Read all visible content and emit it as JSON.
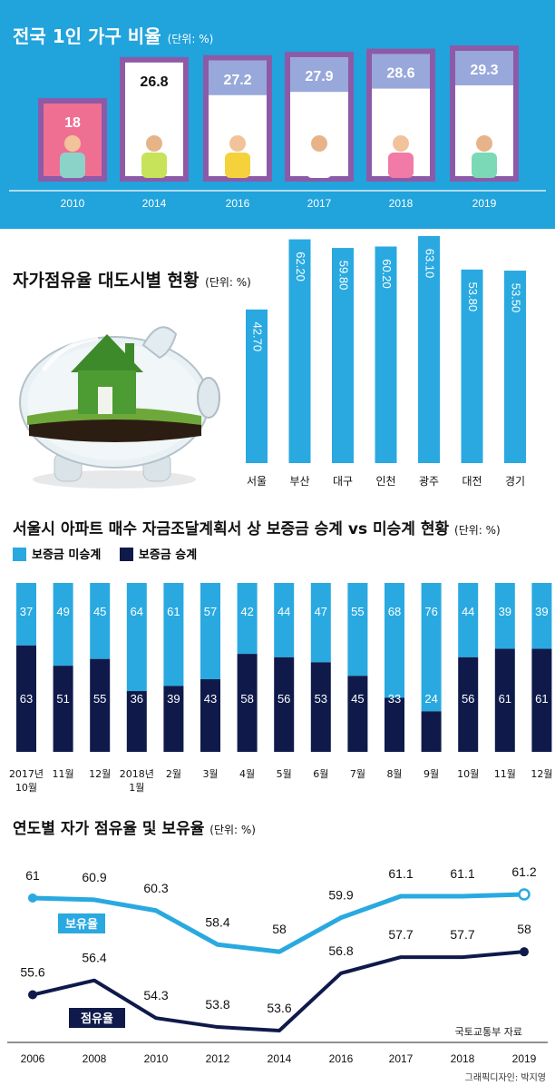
{
  "colors": {
    "top_panel": "#21a3dc",
    "cyan": "#29a9e0",
    "navy": "#0f1a4b",
    "window_frame": "#8d5aa8",
    "window_pink": "#ef6f92",
    "white": "#ffffff"
  },
  "credits": {
    "source": "국토교통부 자료",
    "designer": "그래픽디자인: 박지영"
  },
  "chart_data": [
    {
      "type": "bar",
      "title": "전국 1인 가구 비율",
      "unit": "(단위: %)",
      "categories": [
        "2010",
        "2014",
        "2016",
        "2017",
        "2018",
        "2019"
      ],
      "values": [
        18,
        26.8,
        27.2,
        27.9,
        28.6,
        29.3
      ],
      "value_labels": [
        "18",
        "26.8",
        "27.2",
        "27.9",
        "28.6",
        "29.3"
      ],
      "style": "illustrated windows"
    },
    {
      "type": "bar",
      "title": "자가점유율 대도시별 현황",
      "unit": "(단위: %)",
      "categories": [
        "서울",
        "부산",
        "대구",
        "인천",
        "광주",
        "대전",
        "경기"
      ],
      "values": [
        42.7,
        62.2,
        59.8,
        60.2,
        63.1,
        53.8,
        53.5
      ],
      "value_labels": [
        "42.70",
        "62.20",
        "59.80",
        "60.20",
        "63.10",
        "53.80",
        "53.50"
      ],
      "illustration": "glass piggy bank with grass house"
    },
    {
      "type": "bar",
      "stacked": true,
      "title": "서울시 아파트 매수 자금조달계획서 상 보증금 승계 vs 미승계 현황",
      "unit": "(단위: %)",
      "categories": [
        [
          "2017년",
          "10월"
        ],
        [
          "11월"
        ],
        [
          "12월"
        ],
        [
          "2018년",
          "1월"
        ],
        [
          "2월"
        ],
        [
          "3월"
        ],
        [
          "4월"
        ],
        [
          "5월"
        ],
        [
          "6월"
        ],
        [
          "7월"
        ],
        [
          "8월"
        ],
        [
          "9월"
        ],
        [
          "10월"
        ],
        [
          "11월"
        ],
        [
          "12월"
        ]
      ],
      "series": [
        {
          "name": "보증금 미승계",
          "values": [
            37,
            49,
            45,
            64,
            61,
            57,
            42,
            44,
            47,
            55,
            68,
            76,
            44,
            39,
            39
          ]
        },
        {
          "name": "보증금 승계",
          "values": [
            63,
            51,
            55,
            36,
            39,
            43,
            58,
            56,
            53,
            45,
            33,
            24,
            56,
            61,
            61
          ]
        }
      ],
      "legend": "top-left"
    },
    {
      "type": "line",
      "title": "연도별 자가 점유율 및 보유율",
      "unit": "(단위: %)",
      "x": [
        "2006",
        "2008",
        "2010",
        "2012",
        "2014",
        "2016",
        "2017",
        "2018",
        "2019"
      ],
      "series": [
        {
          "name": "보유율",
          "values": [
            61,
            60.9,
            60.3,
            58.4,
            58,
            59.9,
            61.1,
            61.1,
            61.2
          ],
          "labels": [
            "61",
            "60.9",
            "60.3",
            "58.4",
            "58",
            "59.9",
            "61.1",
            "61.1",
            "61.2"
          ]
        },
        {
          "name": "점유율",
          "values": [
            55.6,
            56.4,
            54.3,
            53.8,
            53.6,
            56.8,
            57.7,
            57.7,
            58
          ],
          "labels": [
            "55.6",
            "56.4",
            "54.3",
            "53.8",
            "53.6",
            "56.8",
            "57.7",
            "57.7",
            "58"
          ]
        }
      ]
    }
  ]
}
